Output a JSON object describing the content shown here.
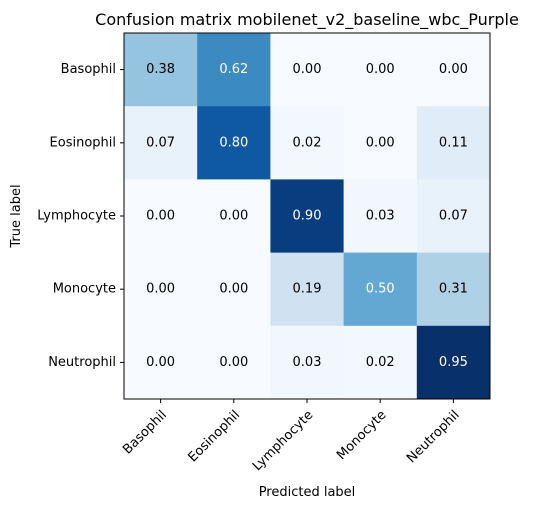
{
  "chart_data": {
    "type": "heatmap",
    "title": "Confusion matrix mobilenet_v2_baseline_wbc_Purple",
    "xlabel": "Predicted label",
    "ylabel": "True label",
    "x_categories": [
      "Basophil",
      "Eosinophil",
      "Lymphocyte",
      "Monocyte",
      "Neutrophil"
    ],
    "y_categories": [
      "Basophil",
      "Eosinophil",
      "Lymphocyte",
      "Monocyte",
      "Neutrophil"
    ],
    "values": [
      [
        0.38,
        0.62,
        0.0,
        0.0,
        0.0
      ],
      [
        0.07,
        0.8,
        0.02,
        0.0,
        0.11
      ],
      [
        0.0,
        0.0,
        0.9,
        0.03,
        0.07
      ],
      [
        0.0,
        0.0,
        0.19,
        0.5,
        0.31
      ],
      [
        0.0,
        0.0,
        0.03,
        0.02,
        0.95
      ]
    ],
    "colormap": "Blues",
    "value_format": "0.00"
  }
}
